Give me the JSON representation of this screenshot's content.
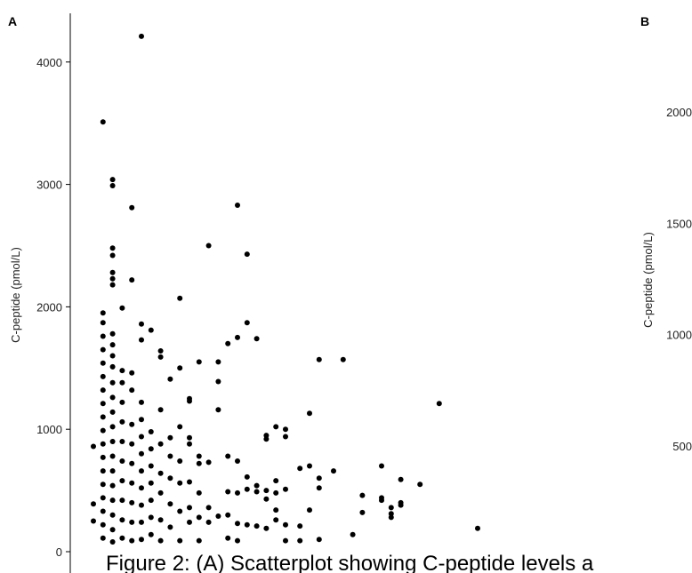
{
  "chart_data": [
    {
      "panel_label": "A",
      "type": "scatter",
      "ylabel": "C-peptide (pmol/L)",
      "ylim": [
        -50,
        4350
      ],
      "yticks": [
        0,
        1000,
        2000,
        3000,
        4000
      ],
      "ytick_labels": [
        "0",
        "1000",
        "2000",
        "3000",
        "4000"
      ],
      "grid": false,
      "point_color": "#000000",
      "points": [
        {
          "x": 1,
          "y": 860
        },
        {
          "x": 1,
          "y": 390
        },
        {
          "x": 1,
          "y": 250
        },
        {
          "x": 3,
          "y": 3510
        },
        {
          "x": 3,
          "y": 1950
        },
        {
          "x": 3,
          "y": 1870
        },
        {
          "x": 3,
          "y": 1760
        },
        {
          "x": 3,
          "y": 1650
        },
        {
          "x": 3,
          "y": 1540
        },
        {
          "x": 3,
          "y": 1430
        },
        {
          "x": 3,
          "y": 1320
        },
        {
          "x": 3,
          "y": 1210
        },
        {
          "x": 3,
          "y": 1100
        },
        {
          "x": 3,
          "y": 990
        },
        {
          "x": 3,
          "y": 880
        },
        {
          "x": 3,
          "y": 770
        },
        {
          "x": 3,
          "y": 660
        },
        {
          "x": 3,
          "y": 550
        },
        {
          "x": 3,
          "y": 440
        },
        {
          "x": 3,
          "y": 330
        },
        {
          "x": 3,
          "y": 220
        },
        {
          "x": 3,
          "y": 110
        },
        {
          "x": 5,
          "y": 3040
        },
        {
          "x": 5,
          "y": 2990
        },
        {
          "x": 5,
          "y": 2480
        },
        {
          "x": 5,
          "y": 2420
        },
        {
          "x": 5,
          "y": 2280
        },
        {
          "x": 5,
          "y": 2230
        },
        {
          "x": 5,
          "y": 2180
        },
        {
          "x": 5,
          "y": 1780
        },
        {
          "x": 5,
          "y": 1690
        },
        {
          "x": 5,
          "y": 1600
        },
        {
          "x": 5,
          "y": 1510
        },
        {
          "x": 5,
          "y": 1380
        },
        {
          "x": 5,
          "y": 1260
        },
        {
          "x": 5,
          "y": 1140
        },
        {
          "x": 5,
          "y": 1020
        },
        {
          "x": 5,
          "y": 900
        },
        {
          "x": 5,
          "y": 780
        },
        {
          "x": 5,
          "y": 660
        },
        {
          "x": 5,
          "y": 540
        },
        {
          "x": 5,
          "y": 420
        },
        {
          "x": 5,
          "y": 300
        },
        {
          "x": 5,
          "y": 180
        },
        {
          "x": 5,
          "y": 80
        },
        {
          "x": 7,
          "y": 1990
        },
        {
          "x": 7,
          "y": 1480
        },
        {
          "x": 7,
          "y": 1380
        },
        {
          "x": 7,
          "y": 1220
        },
        {
          "x": 7,
          "y": 1060
        },
        {
          "x": 7,
          "y": 900
        },
        {
          "x": 7,
          "y": 740
        },
        {
          "x": 7,
          "y": 580
        },
        {
          "x": 7,
          "y": 420
        },
        {
          "x": 7,
          "y": 260
        },
        {
          "x": 7,
          "y": 110
        },
        {
          "x": 9,
          "y": 2810
        },
        {
          "x": 9,
          "y": 2220
        },
        {
          "x": 9,
          "y": 1460
        },
        {
          "x": 9,
          "y": 1320
        },
        {
          "x": 9,
          "y": 1040
        },
        {
          "x": 9,
          "y": 880
        },
        {
          "x": 9,
          "y": 720
        },
        {
          "x": 9,
          "y": 560
        },
        {
          "x": 9,
          "y": 400
        },
        {
          "x": 9,
          "y": 240
        },
        {
          "x": 9,
          "y": 90
        },
        {
          "x": 11,
          "y": 4210
        },
        {
          "x": 11,
          "y": 1860
        },
        {
          "x": 11,
          "y": 1730
        },
        {
          "x": 11,
          "y": 1220
        },
        {
          "x": 11,
          "y": 1080
        },
        {
          "x": 11,
          "y": 940
        },
        {
          "x": 11,
          "y": 800
        },
        {
          "x": 11,
          "y": 660
        },
        {
          "x": 11,
          "y": 520
        },
        {
          "x": 11,
          "y": 380
        },
        {
          "x": 11,
          "y": 240
        },
        {
          "x": 11,
          "y": 100
        },
        {
          "x": 13,
          "y": 1810
        },
        {
          "x": 13,
          "y": 980
        },
        {
          "x": 13,
          "y": 840
        },
        {
          "x": 13,
          "y": 700
        },
        {
          "x": 13,
          "y": 560
        },
        {
          "x": 13,
          "y": 420
        },
        {
          "x": 13,
          "y": 280
        },
        {
          "x": 13,
          "y": 140
        },
        {
          "x": 15,
          "y": 1640
        },
        {
          "x": 15,
          "y": 1590
        },
        {
          "x": 15,
          "y": 1160
        },
        {
          "x": 15,
          "y": 880
        },
        {
          "x": 15,
          "y": 640
        },
        {
          "x": 15,
          "y": 480
        },
        {
          "x": 15,
          "y": 260
        },
        {
          "x": 15,
          "y": 90
        },
        {
          "x": 17,
          "y": 1410
        },
        {
          "x": 17,
          "y": 930
        },
        {
          "x": 17,
          "y": 780
        },
        {
          "x": 17,
          "y": 600
        },
        {
          "x": 17,
          "y": 390
        },
        {
          "x": 17,
          "y": 200
        },
        {
          "x": 19,
          "y": 2070
        },
        {
          "x": 19,
          "y": 1500
        },
        {
          "x": 19,
          "y": 1020
        },
        {
          "x": 19,
          "y": 740
        },
        {
          "x": 19,
          "y": 560
        },
        {
          "x": 19,
          "y": 330
        },
        {
          "x": 19,
          "y": 90
        },
        {
          "x": 21,
          "y": 1250
        },
        {
          "x": 21,
          "y": 1230
        },
        {
          "x": 21,
          "y": 930
        },
        {
          "x": 21,
          "y": 880
        },
        {
          "x": 21,
          "y": 570
        },
        {
          "x": 21,
          "y": 360
        },
        {
          "x": 21,
          "y": 240
        },
        {
          "x": 23,
          "y": 1550
        },
        {
          "x": 23,
          "y": 780
        },
        {
          "x": 23,
          "y": 720
        },
        {
          "x": 23,
          "y": 480
        },
        {
          "x": 23,
          "y": 280
        },
        {
          "x": 23,
          "y": 90
        },
        {
          "x": 25,
          "y": 2500
        },
        {
          "x": 25,
          "y": 730
        },
        {
          "x": 25,
          "y": 360
        },
        {
          "x": 25,
          "y": 240
        },
        {
          "x": 27,
          "y": 1550
        },
        {
          "x": 27,
          "y": 1390
        },
        {
          "x": 27,
          "y": 1160
        },
        {
          "x": 27,
          "y": 290
        },
        {
          "x": 29,
          "y": 1700
        },
        {
          "x": 29,
          "y": 780
        },
        {
          "x": 29,
          "y": 490
        },
        {
          "x": 29,
          "y": 300
        },
        {
          "x": 29,
          "y": 110
        },
        {
          "x": 31,
          "y": 2830
        },
        {
          "x": 31,
          "y": 1750
        },
        {
          "x": 31,
          "y": 740
        },
        {
          "x": 31,
          "y": 480
        },
        {
          "x": 31,
          "y": 230
        },
        {
          "x": 31,
          "y": 90
        },
        {
          "x": 33,
          "y": 2430
        },
        {
          "x": 33,
          "y": 1870
        },
        {
          "x": 33,
          "y": 610
        },
        {
          "x": 33,
          "y": 510
        },
        {
          "x": 33,
          "y": 220
        },
        {
          "x": 35,
          "y": 1740
        },
        {
          "x": 35,
          "y": 540
        },
        {
          "x": 35,
          "y": 490
        },
        {
          "x": 35,
          "y": 210
        },
        {
          "x": 37,
          "y": 950
        },
        {
          "x": 37,
          "y": 920
        },
        {
          "x": 37,
          "y": 500
        },
        {
          "x": 37,
          "y": 430
        },
        {
          "x": 37,
          "y": 190
        },
        {
          "x": 39,
          "y": 1020
        },
        {
          "x": 39,
          "y": 580
        },
        {
          "x": 39,
          "y": 480
        },
        {
          "x": 39,
          "y": 340
        },
        {
          "x": 39,
          "y": 260
        },
        {
          "x": 41,
          "y": 1000
        },
        {
          "x": 41,
          "y": 940
        },
        {
          "x": 41,
          "y": 510
        },
        {
          "x": 41,
          "y": 220
        },
        {
          "x": 41,
          "y": 90
        },
        {
          "x": 44,
          "y": 680
        },
        {
          "x": 44,
          "y": 210
        },
        {
          "x": 44,
          "y": 90
        },
        {
          "x": 46,
          "y": 1130
        },
        {
          "x": 46,
          "y": 700
        },
        {
          "x": 46,
          "y": 340
        },
        {
          "x": 48,
          "y": 1570
        },
        {
          "x": 48,
          "y": 600
        },
        {
          "x": 48,
          "y": 520
        },
        {
          "x": 48,
          "y": 100
        },
        {
          "x": 51,
          "y": 660
        },
        {
          "x": 53,
          "y": 1570
        },
        {
          "x": 55,
          "y": 140
        },
        {
          "x": 57,
          "y": 460
        },
        {
          "x": 57,
          "y": 320
        },
        {
          "x": 61,
          "y": 700
        },
        {
          "x": 61,
          "y": 440
        },
        {
          "x": 61,
          "y": 420
        },
        {
          "x": 63,
          "y": 360
        },
        {
          "x": 63,
          "y": 310
        },
        {
          "x": 63,
          "y": 280
        },
        {
          "x": 65,
          "y": 590
        },
        {
          "x": 65,
          "y": 400
        },
        {
          "x": 65,
          "y": 380
        },
        {
          "x": 69,
          "y": 550
        },
        {
          "x": 73,
          "y": 1210
        },
        {
          "x": 81,
          "y": 190
        }
      ]
    },
    {
      "panel_label": "B",
      "type": "scatter",
      "ylabel": "C-peptide (pmol/L)",
      "yticks": [
        500,
        1000,
        1500,
        2000
      ],
      "ytick_labels": [
        "500",
        "1000",
        "1500",
        "2000"
      ],
      "grid": false
    }
  ],
  "caption": "Figure 2: (A) Scatterplot showing C-peptide levels a"
}
